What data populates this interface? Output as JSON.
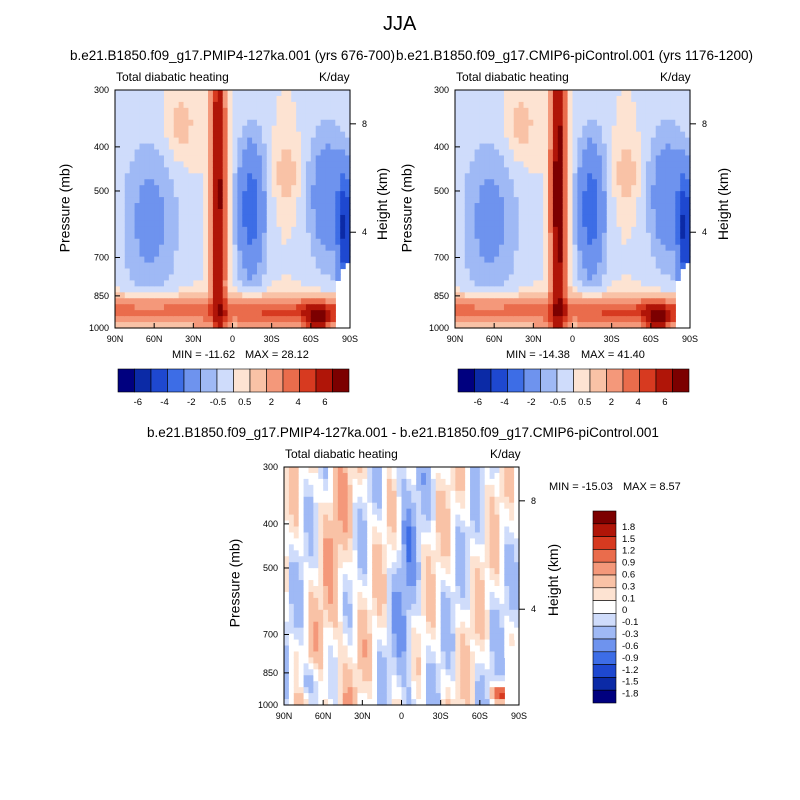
{
  "figure": {
    "title": "JJA"
  },
  "colors": {
    "levels_12": [
      "#00007f",
      "#0b2aa6",
      "#1e48d0",
      "#3d6de6",
      "#6e93ee",
      "#9fb9f5",
      "#cfdcfb",
      "#fde3d2",
      "#f9c2a6",
      "#f4987a",
      "#ea6c4c",
      "#d73a20",
      "#b01508",
      "#7c0000"
    ],
    "levels_diff": [
      "#00007f",
      "#0b2aa6",
      "#1e48d0",
      "#3d6de6",
      "#6e93ee",
      "#9fb9f5",
      "#cfdcfb",
      "#ffffff",
      "#fde3d2",
      "#f9c2a6",
      "#f4987a",
      "#ea6c4c",
      "#d73a20",
      "#b01508",
      "#7c0000"
    ]
  },
  "chart_data": [
    {
      "type": "heatmap",
      "title": "b.e21.B1850.f09_g17.PMIP4-127ka.001 (yrs 676-700)",
      "left_label": "Total diabatic heating",
      "right_label": "K/day",
      "ylabel": "Pressure (mb)",
      "ylabel_right": "Height (km)",
      "x_ticks": [
        "90N",
        "60N",
        "30N",
        "0",
        "30S",
        "60S",
        "90S"
      ],
      "y_ticks": [
        "300",
        "400",
        "500",
        "700",
        "850",
        "1000"
      ],
      "y_ticks_right": [
        "8",
        "4"
      ],
      "min_label": "MIN = -11.62",
      "max_label": "MAX =  28.12",
      "colorbar_labels": [
        "-6",
        "-4",
        "-2",
        "-0.5",
        "0.5",
        "2",
        "4",
        "6"
      ]
    },
    {
      "type": "heatmap",
      "title": "b.e21.B1850.f09_g17.CMIP6-piControl.001 (yrs 1176-1200)",
      "left_label": "Total diabatic heating",
      "right_label": "K/day",
      "ylabel": "Pressure (mb)",
      "ylabel_right": "Height (km)",
      "x_ticks": [
        "90N",
        "60N",
        "30N",
        "0",
        "30S",
        "60S",
        "90S"
      ],
      "y_ticks": [
        "300",
        "400",
        "500",
        "700",
        "850",
        "1000"
      ],
      "y_ticks_right": [
        "8",
        "4"
      ],
      "min_label": "MIN = -14.38",
      "max_label": "MAX =  41.40",
      "colorbar_labels": [
        "-6",
        "-4",
        "-2",
        "-0.5",
        "0.5",
        "2",
        "4",
        "6"
      ]
    },
    {
      "type": "heatmap",
      "title": "b.e21.B1850.f09_g17.PMIP4-127ka.001 - b.e21.B1850.f09_g17.CMIP6-piControl.001",
      "left_label": "Total diabatic heating",
      "right_label": "K/day",
      "ylabel": "Pressure (mb)",
      "ylabel_right": "Height (km)",
      "x_ticks": [
        "90N",
        "60N",
        "30N",
        "0",
        "30S",
        "60S",
        "90S"
      ],
      "y_ticks": [
        "300",
        "400",
        "500",
        "700",
        "850",
        "1000"
      ],
      "y_ticks_right": [
        "8",
        "4"
      ],
      "min_label": "MIN = -15.03",
      "max_label": "MAX =   8.57",
      "colorbar_labels": [
        "1.8",
        "1.5",
        "1.2",
        "0.9",
        "0.6",
        "0.3",
        "0.1",
        "0",
        "-0.1",
        "-0.3",
        "-0.6",
        "-0.9",
        "-1.2",
        "-1.5",
        "-1.8"
      ]
    }
  ]
}
